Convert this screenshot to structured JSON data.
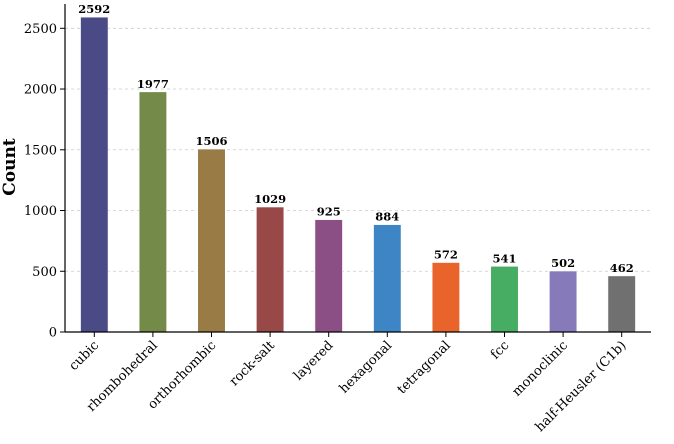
{
  "chart_data": {
    "type": "bar",
    "title": "",
    "xlabel": "",
    "ylabel": "Count",
    "categories": [
      "cubic",
      "rhombohedral",
      "orthorhombic",
      "rock-salt",
      "layered",
      "hexagonal",
      "tetragonal",
      "fcc",
      "monoclinic",
      "half-Heusler (C1b)"
    ],
    "values": [
      2592,
      1977,
      1506,
      1029,
      925,
      884,
      572,
      541,
      502,
      462
    ],
    "value_labels": [
      "2592",
      "1977",
      "1506",
      "1029",
      "925",
      "884",
      "572",
      "541",
      "502",
      "462"
    ],
    "colors": [
      "#4a4a86",
      "#738a49",
      "#997b45",
      "#994848",
      "#8c4f85",
      "#3d85c4",
      "#e8642a",
      "#46ad62",
      "#867abb",
      "#707070"
    ],
    "ylim": [
      0,
      2700
    ],
    "yticks": [
      0,
      500,
      1000,
      1500,
      2000,
      2500
    ],
    "ytick_labels": [
      "0",
      "500",
      "1000",
      "1500",
      "2000",
      "2500"
    ],
    "grid": "horizontal dashed",
    "legend": "none"
  }
}
